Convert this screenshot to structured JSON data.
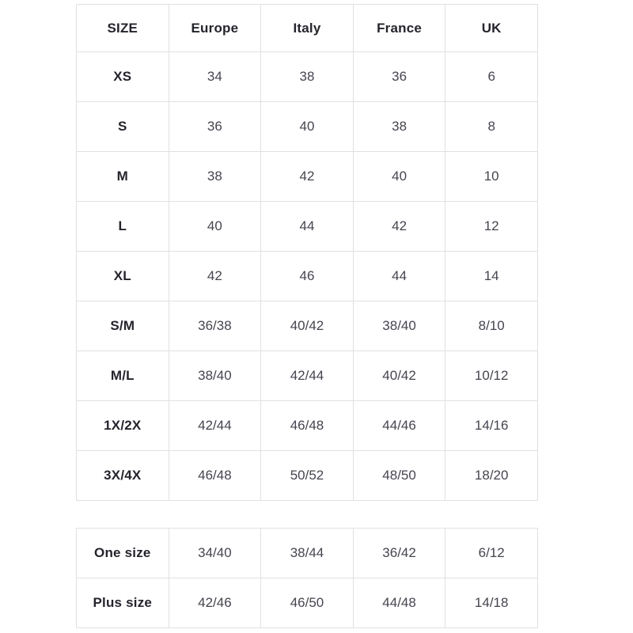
{
  "page": {
    "background": "#ffffff"
  },
  "colors": {
    "border": "#e1e1e1",
    "label_text": "#24242c",
    "value_text": "#45454f",
    "background": "#ffffff"
  },
  "table_main": {
    "headers": [
      "SIZE",
      "Europe",
      "Italy",
      "France",
      "UK"
    ],
    "rows": [
      {
        "label": "XS",
        "values": [
          "34",
          "38",
          "36",
          "6"
        ]
      },
      {
        "label": "S",
        "values": [
          "36",
          "40",
          "38",
          "8"
        ]
      },
      {
        "label": "M",
        "values": [
          "38",
          "42",
          "40",
          "10"
        ]
      },
      {
        "label": "L",
        "values": [
          "40",
          "44",
          "42",
          "12"
        ]
      },
      {
        "label": "XL",
        "values": [
          "42",
          "46",
          "44",
          "14"
        ]
      },
      {
        "label": "S/M",
        "values": [
          "36/38",
          "40/42",
          "38/40",
          "8/10"
        ]
      },
      {
        "label": "M/L",
        "values": [
          "38/40",
          "42/44",
          "40/42",
          "10/12"
        ]
      },
      {
        "label": "1X/2X",
        "values": [
          "42/44",
          "46/48",
          "44/46",
          "14/16"
        ]
      },
      {
        "label": "3X/4X",
        "values": [
          "46/48",
          "50/52",
          "48/50",
          "18/20"
        ]
      }
    ]
  },
  "table_secondary": {
    "rows": [
      {
        "label": "One size",
        "values": [
          "34/40",
          "38/44",
          "36/42",
          "6/12"
        ]
      },
      {
        "label": "Plus size",
        "values": [
          "42/46",
          "46/50",
          "44/48",
          "14/18"
        ]
      }
    ]
  }
}
